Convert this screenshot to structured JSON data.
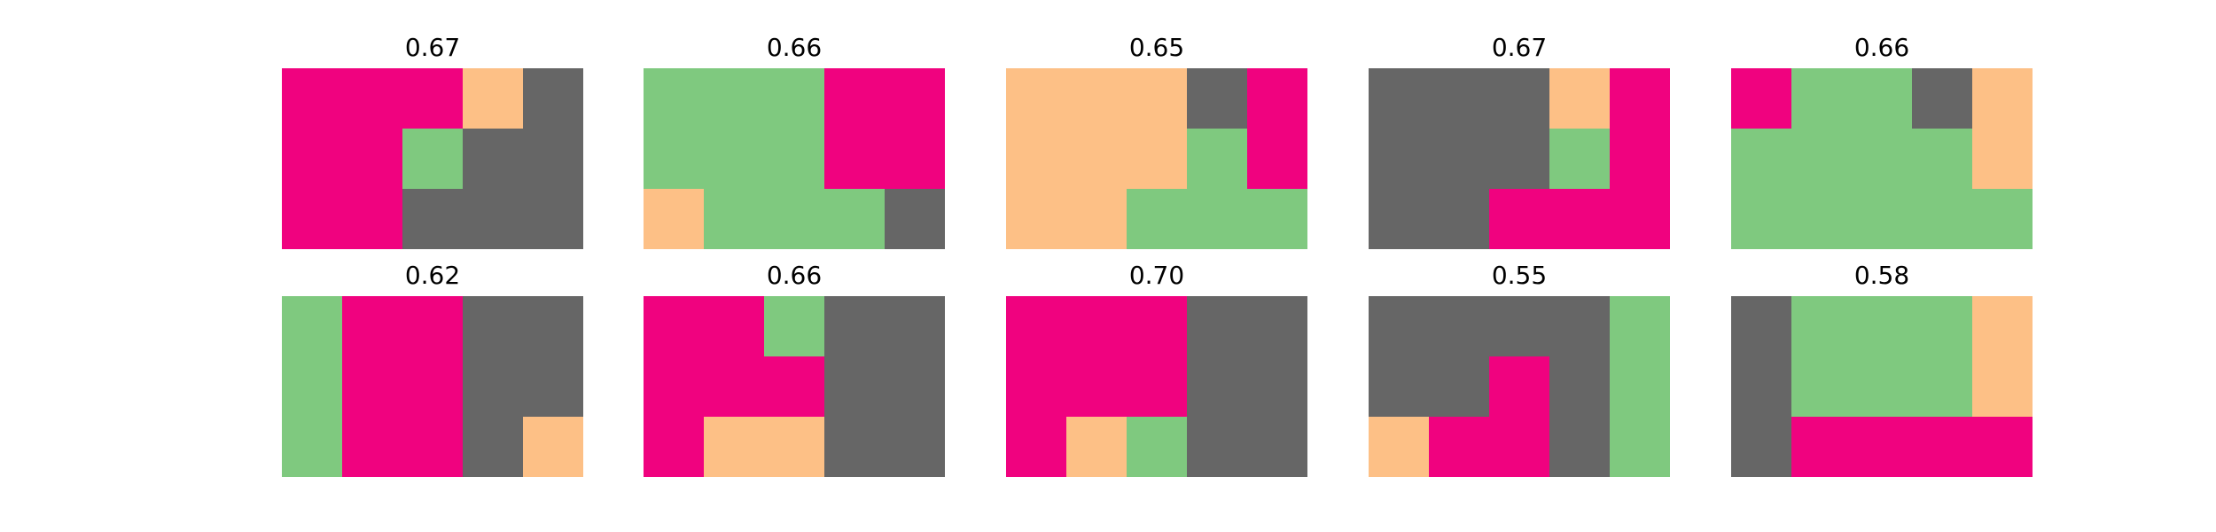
{
  "chart_data": {
    "type": "heatmap",
    "grid_rows": 3,
    "grid_cols": 5,
    "palette": {
      "0": "#f0027f",
      "1": "#fdc086",
      "2": "#7fc97f",
      "3": "#666666"
    },
    "panels": [
      {
        "title": "0.67",
        "cells": [
          [
            0,
            0,
            0,
            1,
            3
          ],
          [
            0,
            0,
            2,
            3,
            3
          ],
          [
            0,
            0,
            3,
            3,
            3
          ]
        ]
      },
      {
        "title": "0.66",
        "cells": [
          [
            2,
            2,
            2,
            0,
            0
          ],
          [
            2,
            2,
            2,
            0,
            0
          ],
          [
            1,
            2,
            2,
            2,
            3
          ]
        ]
      },
      {
        "title": "0.65",
        "cells": [
          [
            1,
            1,
            1,
            3,
            0
          ],
          [
            1,
            1,
            1,
            2,
            0
          ],
          [
            1,
            1,
            2,
            2,
            2
          ]
        ]
      },
      {
        "title": "0.67",
        "cells": [
          [
            3,
            3,
            3,
            1,
            0
          ],
          [
            3,
            3,
            3,
            2,
            0
          ],
          [
            3,
            3,
            0,
            0,
            0
          ]
        ]
      },
      {
        "title": "0.66",
        "cells": [
          [
            0,
            2,
            2,
            3,
            1
          ],
          [
            2,
            2,
            2,
            2,
            1
          ],
          [
            2,
            2,
            2,
            2,
            2
          ]
        ]
      },
      {
        "title": "0.62",
        "cells": [
          [
            2,
            0,
            0,
            3,
            3
          ],
          [
            2,
            0,
            0,
            3,
            3
          ],
          [
            2,
            0,
            0,
            3,
            1
          ]
        ]
      },
      {
        "title": "0.66",
        "cells": [
          [
            0,
            0,
            2,
            3,
            3
          ],
          [
            0,
            0,
            0,
            3,
            3
          ],
          [
            0,
            1,
            1,
            3,
            3
          ]
        ]
      },
      {
        "title": "0.70",
        "cells": [
          [
            0,
            0,
            0,
            3,
            3
          ],
          [
            0,
            0,
            0,
            3,
            3
          ],
          [
            0,
            1,
            2,
            3,
            3
          ]
        ]
      },
      {
        "title": "0.55",
        "cells": [
          [
            3,
            3,
            3,
            3,
            2
          ],
          [
            3,
            3,
            0,
            3,
            2
          ],
          [
            1,
            0,
            0,
            3,
            2
          ]
        ]
      },
      {
        "title": "0.58",
        "cells": [
          [
            3,
            2,
            2,
            2,
            1
          ],
          [
            3,
            2,
            2,
            2,
            1
          ],
          [
            3,
            0,
            0,
            0,
            0
          ]
        ]
      }
    ]
  }
}
